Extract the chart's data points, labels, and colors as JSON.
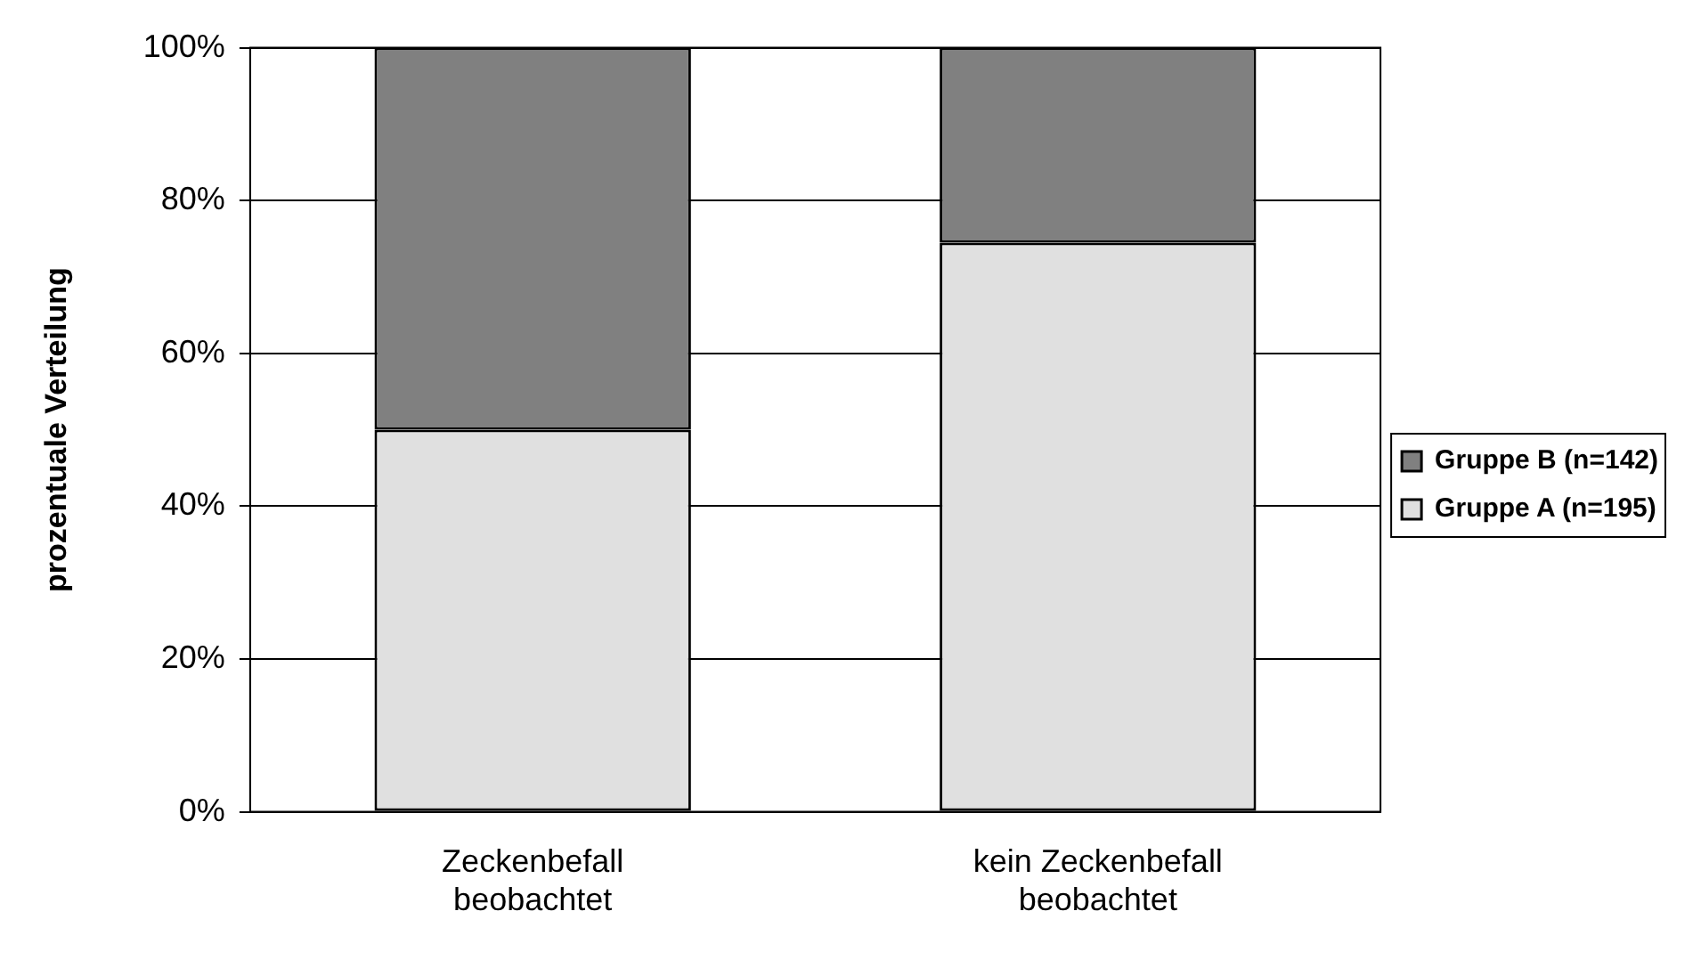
{
  "chart_data": {
    "type": "bar",
    "stacked": true,
    "ylabel": "prozentuale Verteilung",
    "categories": [
      "Zeckenbefall beobachtet",
      "kein Zeckenbefall beobachtet"
    ],
    "series": [
      {
        "name": "Gruppe A (n=195)",
        "color": "#e0e0e0",
        "values": [
          50,
          74.5
        ]
      },
      {
        "name": "Gruppe B (n=142)",
        "color": "#808080",
        "values": [
          50,
          25.5
        ]
      }
    ],
    "ylim": [
      0,
      100
    ],
    "yticks": [
      {
        "value": 0,
        "label": "0%"
      },
      {
        "value": 20,
        "label": "20%"
      },
      {
        "value": 40,
        "label": "40%"
      },
      {
        "value": 60,
        "label": "60%"
      },
      {
        "value": 80,
        "label": "80%"
      },
      {
        "value": 100,
        "label": "100%"
      }
    ],
    "grid": "y",
    "legend": "right"
  }
}
